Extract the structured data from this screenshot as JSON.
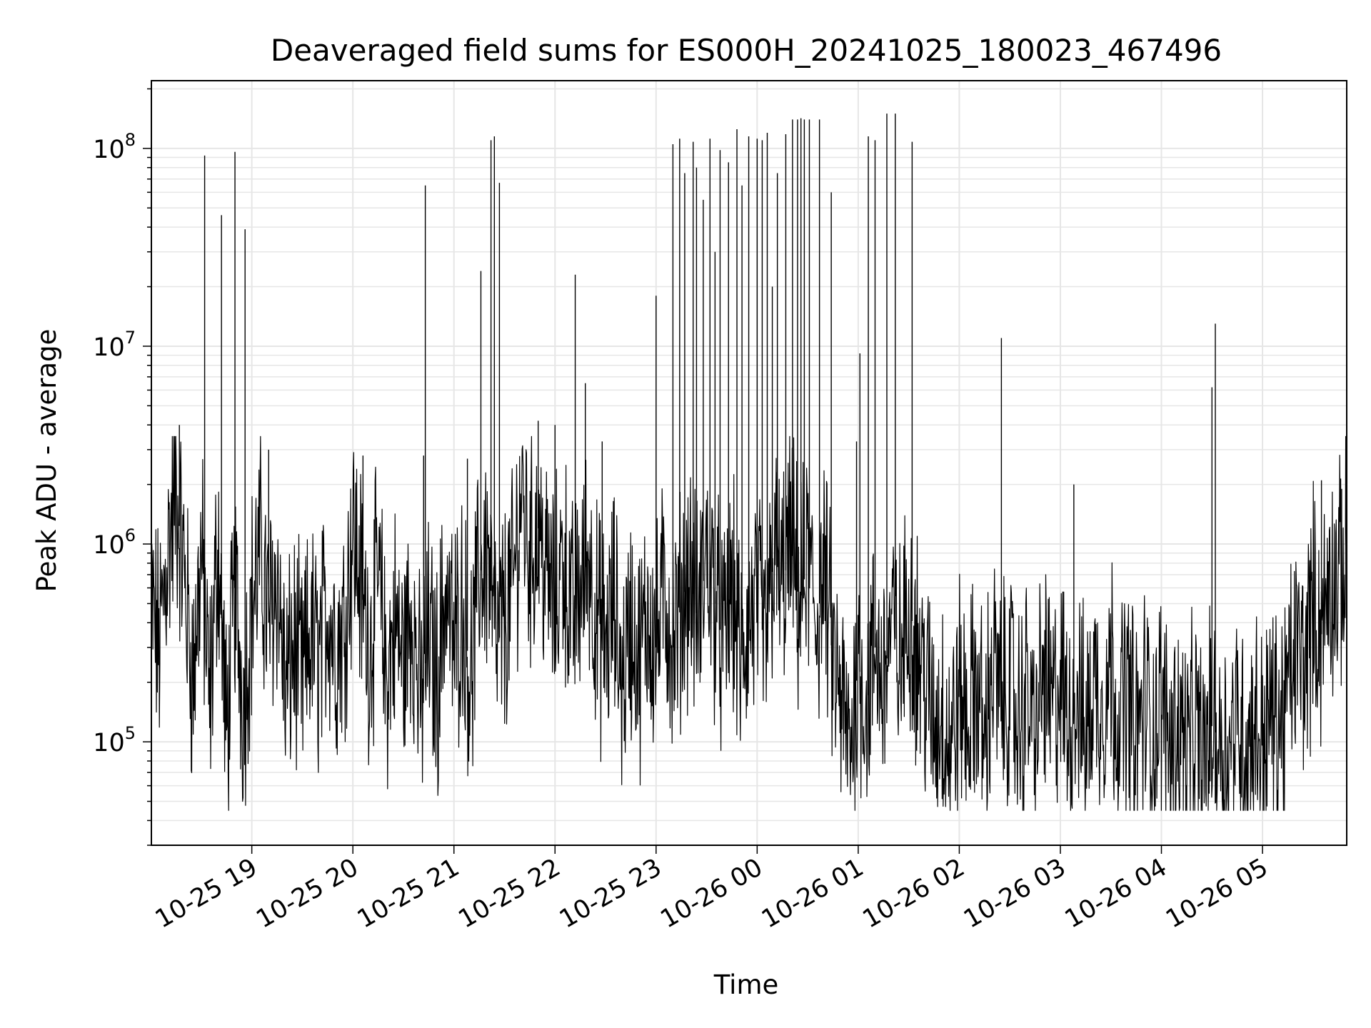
{
  "chart_data": {
    "type": "line",
    "title": "Deaveraged field sums for ES000H_20241025_180023_467496",
    "xlabel": "Time",
    "ylabel": "Peak ADU - average",
    "yscale": "log",
    "ylim": [
      30000,
      220000000
    ],
    "xlim": [
      "2024-10-25 18:00:23",
      "2024-10-26 05:50:00"
    ],
    "grid": true,
    "line_color": "#000000",
    "grid_color": "#e6e6e6",
    "y_ticks": [
      {
        "base": "10",
        "exp": "5",
        "value": 100000
      },
      {
        "base": "10",
        "exp": "6",
        "value": 1000000
      },
      {
        "base": "10",
        "exp": "7",
        "value": 10000000
      },
      {
        "base": "10",
        "exp": "8",
        "value": 100000000
      }
    ],
    "x_ticks": [
      {
        "label": "10-25 19",
        "time": "2024-10-25 19:00"
      },
      {
        "label": "10-25 20",
        "time": "2024-10-25 20:00"
      },
      {
        "label": "10-25 21",
        "time": "2024-10-25 21:00"
      },
      {
        "label": "10-25 22",
        "time": "2024-10-25 22:00"
      },
      {
        "label": "10-25 23",
        "time": "2024-10-25 23:00"
      },
      {
        "label": "10-26 00",
        "time": "2024-10-26 00:00"
      },
      {
        "label": "10-26 01",
        "time": "2024-10-26 01:00"
      },
      {
        "label": "10-26 02",
        "time": "2024-10-26 02:00"
      },
      {
        "label": "10-26 03",
        "time": "2024-10-26 03:00"
      },
      {
        "label": "10-26 04",
        "time": "2024-10-26 04:00"
      },
      {
        "label": "10-26 05",
        "time": "2024-10-26 05:00"
      }
    ],
    "series": [
      {
        "points": [
          [
            "2024-10-25 18:00",
            500000
          ],
          [
            "2024-10-25 18:05",
            300000
          ],
          [
            "2024-10-25 18:10",
            900000
          ],
          [
            "2024-10-25 18:15",
            1800000
          ],
          [
            "2024-10-25 18:20",
            700000
          ],
          [
            "2024-10-25 18:25",
            200000
          ],
          [
            "2024-10-25 18:30",
            900000
          ],
          [
            "2024-10-25 18:35",
            150000
          ],
          [
            "2024-10-25 18:40",
            1100000
          ],
          [
            "2024-10-25 18:45",
            100000
          ],
          [
            "2024-10-25 18:50",
            600000
          ],
          [
            "2024-10-25 18:55",
            150000
          ],
          [
            "2024-10-25 19:00",
            500000
          ],
          [
            "2024-10-25 19:05",
            900000
          ],
          [
            "2024-10-25 19:10",
            400000
          ],
          [
            "2024-10-25 19:15",
            700000
          ],
          [
            "2024-10-25 19:20",
            180000
          ],
          [
            "2024-10-25 19:25",
            300000
          ],
          [
            "2024-10-25 19:30",
            200000
          ],
          [
            "2024-10-25 19:35",
            350000
          ],
          [
            "2024-10-25 19:40",
            250000
          ],
          [
            "2024-10-25 19:45",
            500000
          ],
          [
            "2024-10-25 19:50",
            300000
          ],
          [
            "2024-10-25 19:55",
            400000
          ],
          [
            "2024-10-25 20:00",
            1200000
          ],
          [
            "2024-10-25 20:05",
            600000
          ],
          [
            "2024-10-25 20:10",
            300000
          ],
          [
            "2024-10-25 20:15",
            700000
          ],
          [
            "2024-10-25 20:20",
            200000
          ],
          [
            "2024-10-25 20:25",
            400000
          ],
          [
            "2024-10-25 20:30",
            250000
          ],
          [
            "2024-10-25 20:35",
            500000
          ],
          [
            "2024-10-25 20:40",
            150000
          ],
          [
            "2024-10-25 20:45",
            350000
          ],
          [
            "2024-10-25 20:50",
            200000
          ],
          [
            "2024-10-25 20:55",
            600000
          ],
          [
            "2024-10-25 21:00",
            300000
          ],
          [
            "2024-10-25 21:05",
            500000
          ],
          [
            "2024-10-25 21:10",
            200000
          ],
          [
            "2024-10-25 21:15",
            700000
          ],
          [
            "2024-10-25 21:20",
            900000
          ],
          [
            "2024-10-25 21:25",
            300000
          ],
          [
            "2024-10-25 21:30",
            400000
          ],
          [
            "2024-10-25 21:35",
            600000
          ],
          [
            "2024-10-25 21:40",
            1800000
          ],
          [
            "2024-10-25 21:45",
            900000
          ],
          [
            "2024-10-25 21:50",
            1200000
          ],
          [
            "2024-10-25 21:55",
            700000
          ],
          [
            "2024-10-25 22:00",
            500000
          ],
          [
            "2024-10-25 22:05",
            900000
          ],
          [
            "2024-10-25 22:10",
            400000
          ],
          [
            "2024-10-25 22:15",
            600000
          ],
          [
            "2024-10-25 22:20",
            900000
          ],
          [
            "2024-10-25 22:25",
            400000
          ],
          [
            "2024-10-25 22:30",
            300000
          ],
          [
            "2024-10-25 22:35",
            500000
          ],
          [
            "2024-10-25 22:40",
            200000
          ],
          [
            "2024-10-25 22:45",
            400000
          ],
          [
            "2024-10-25 22:50",
            250000
          ],
          [
            "2024-10-25 22:55",
            450000
          ],
          [
            "2024-10-25 23:00",
            300000
          ],
          [
            "2024-10-25 23:05",
            600000
          ],
          [
            "2024-10-25 23:10",
            300000
          ],
          [
            "2024-10-25 23:15",
            500000
          ],
          [
            "2024-10-25 23:20",
            700000
          ],
          [
            "2024-10-25 23:25",
            400000
          ],
          [
            "2024-10-25 23:30",
            900000
          ],
          [
            "2024-10-25 23:35",
            500000
          ],
          [
            "2024-10-25 23:40",
            300000
          ],
          [
            "2024-10-25 23:45",
            600000
          ],
          [
            "2024-10-25 23:50",
            250000
          ],
          [
            "2024-10-25 23:55",
            400000
          ],
          [
            "2024-10-26 00:00",
            500000
          ],
          [
            "2024-10-26 00:05",
            300000
          ],
          [
            "2024-10-26 00:10",
            900000
          ],
          [
            "2024-10-26 00:15",
            600000
          ],
          [
            "2024-10-26 00:20",
            1000000
          ],
          [
            "2024-10-26 00:25",
            500000
          ],
          [
            "2024-10-26 00:30",
            800000
          ],
          [
            "2024-10-26 00:35",
            400000
          ],
          [
            "2024-10-26 00:40",
            700000
          ],
          [
            "2024-10-26 00:45",
            250000
          ],
          [
            "2024-10-26 00:50",
            150000
          ],
          [
            "2024-10-26 00:55",
            90000
          ],
          [
            "2024-10-26 01:00",
            250000
          ],
          [
            "2024-10-26 01:05",
            150000
          ],
          [
            "2024-10-26 01:10",
            300000
          ],
          [
            "2024-10-26 01:15",
            200000
          ],
          [
            "2024-10-26 01:20",
            400000
          ],
          [
            "2024-10-26 01:25",
            250000
          ],
          [
            "2024-10-26 01:30",
            500000
          ],
          [
            "2024-10-26 01:35",
            300000
          ],
          [
            "2024-10-26 01:40",
            200000
          ],
          [
            "2024-10-26 01:45",
            120000
          ],
          [
            "2024-10-26 01:50",
            150000
          ],
          [
            "2024-10-26 01:55",
            90000
          ],
          [
            "2024-10-26 02:00",
            180000
          ],
          [
            "2024-10-26 02:05",
            120000
          ],
          [
            "2024-10-26 02:10",
            200000
          ],
          [
            "2024-10-26 02:15",
            100000
          ],
          [
            "2024-10-26 02:20",
            250000
          ],
          [
            "2024-10-26 02:25",
            150000
          ],
          [
            "2024-10-26 02:30",
            200000
          ],
          [
            "2024-10-26 02:35",
            120000
          ],
          [
            "2024-10-26 02:40",
            180000
          ],
          [
            "2024-10-26 02:45",
            100000
          ],
          [
            "2024-10-26 02:50",
            220000
          ],
          [
            "2024-10-26 02:55",
            140000
          ],
          [
            "2024-10-26 03:00",
            200000
          ],
          [
            "2024-10-26 03:05",
            120000
          ],
          [
            "2024-10-26 03:10",
            180000
          ],
          [
            "2024-10-26 03:15",
            100000
          ],
          [
            "2024-10-26 03:20",
            200000
          ],
          [
            "2024-10-26 03:25",
            150000
          ],
          [
            "2024-10-26 03:30",
            250000
          ],
          [
            "2024-10-26 03:35",
            130000
          ],
          [
            "2024-10-26 03:40",
            180000
          ],
          [
            "2024-10-26 03:45",
            100000
          ],
          [
            "2024-10-26 03:50",
            160000
          ],
          [
            "2024-10-26 03:55",
            110000
          ],
          [
            "2024-10-26 04:00",
            150000
          ],
          [
            "2024-10-26 04:05",
            100000
          ],
          [
            "2024-10-26 04:10",
            120000
          ],
          [
            "2024-10-26 04:15",
            90000
          ],
          [
            "2024-10-26 04:20",
            110000
          ],
          [
            "2024-10-26 04:25",
            85000
          ],
          [
            "2024-10-26 04:30",
            120000
          ],
          [
            "2024-10-26 04:35",
            100000
          ],
          [
            "2024-10-26 04:40",
            90000
          ],
          [
            "2024-10-26 04:45",
            130000
          ],
          [
            "2024-10-26 04:50",
            95000
          ],
          [
            "2024-10-26 04:55",
            120000
          ],
          [
            "2024-10-26 05:00",
            100000
          ],
          [
            "2024-10-26 05:05",
            140000
          ],
          [
            "2024-10-26 05:10",
            110000
          ],
          [
            "2024-10-26 05:15",
            180000
          ],
          [
            "2024-10-26 05:20",
            300000
          ],
          [
            "2024-10-26 05:25",
            250000
          ],
          [
            "2024-10-26 05:30",
            500000
          ],
          [
            "2024-10-26 05:35",
            350000
          ],
          [
            "2024-10-26 05:40",
            700000
          ],
          [
            "2024-10-26 05:45",
            600000
          ],
          [
            "2024-10-26 05:50",
            900000
          ]
        ],
        "spikes": [
          [
            "2024-10-25 18:17",
            4000000
          ],
          [
            "2024-10-25 18:32",
            92000000
          ],
          [
            "2024-10-25 18:42",
            46000000
          ],
          [
            "2024-10-25 18:50",
            96000000
          ],
          [
            "2024-10-25 18:56",
            39000000
          ],
          [
            "2024-10-25 19:10",
            3000000
          ],
          [
            "2024-10-25 20:06",
            2800000
          ],
          [
            "2024-10-25 20:42",
            2800000
          ],
          [
            "2024-10-25 20:43",
            65000000
          ],
          [
            "2024-10-25 21:08",
            2700000
          ],
          [
            "2024-10-25 21:16",
            24000000
          ],
          [
            "2024-10-25 21:22",
            110000000
          ],
          [
            "2024-10-25 21:24",
            115000000
          ],
          [
            "2024-10-25 21:27",
            67000000
          ],
          [
            "2024-10-25 21:50",
            4200000
          ],
          [
            "2024-10-25 22:00",
            4000000
          ],
          [
            "2024-10-25 22:12",
            23000000
          ],
          [
            "2024-10-25 22:18",
            6500000
          ],
          [
            "2024-10-25 22:28",
            3300000
          ],
          [
            "2024-10-25 23:00",
            18000000
          ],
          [
            "2024-10-25 23:10",
            105000000
          ],
          [
            "2024-10-25 23:14",
            112000000
          ],
          [
            "2024-10-25 23:17",
            75000000
          ],
          [
            "2024-10-25 23:22",
            108000000
          ],
          [
            "2024-10-25 23:24",
            80000000
          ],
          [
            "2024-10-25 23:28",
            55000000
          ],
          [
            "2024-10-25 23:32",
            112000000
          ],
          [
            "2024-10-25 23:35",
            30000000
          ],
          [
            "2024-10-25 23:38",
            98000000
          ],
          [
            "2024-10-25 23:43",
            85000000
          ],
          [
            "2024-10-25 23:48",
            125000000
          ],
          [
            "2024-10-25 23:51",
            65000000
          ],
          [
            "2024-10-25 23:55",
            115000000
          ],
          [
            "2024-10-26 00:00",
            112000000
          ],
          [
            "2024-10-26 00:03",
            110000000
          ],
          [
            "2024-10-26 00:06",
            120000000
          ],
          [
            "2024-10-26 00:09",
            20000000
          ],
          [
            "2024-10-26 00:12",
            75000000
          ],
          [
            "2024-10-26 00:17",
            118000000
          ],
          [
            "2024-10-26 00:21",
            140000000
          ],
          [
            "2024-10-26 00:24",
            140000000
          ],
          [
            "2024-10-26 00:26",
            142000000
          ],
          [
            "2024-10-26 00:28",
            140000000
          ],
          [
            "2024-10-26 00:31",
            140000000
          ],
          [
            "2024-10-26 00:37",
            140000000
          ],
          [
            "2024-10-26 00:44",
            60000000
          ],
          [
            "2024-10-26 00:59",
            3300000
          ],
          [
            "2024-10-26 01:01",
            9200000
          ],
          [
            "2024-10-26 01:06",
            115000000
          ],
          [
            "2024-10-26 01:10",
            110000000
          ],
          [
            "2024-10-26 01:17",
            150000000
          ],
          [
            "2024-10-26 01:22",
            150000000
          ],
          [
            "2024-10-26 01:32",
            108000000
          ],
          [
            "2024-10-26 02:25",
            11000000
          ],
          [
            "2024-10-26 03:08",
            2000000
          ],
          [
            "2024-10-26 04:30",
            6200000
          ],
          [
            "2024-10-26 04:32",
            13000000
          ],
          [
            "2024-10-26 05:35",
            2100000
          ],
          [
            "2024-10-26 05:47",
            1900000
          ]
        ]
      }
    ]
  }
}
